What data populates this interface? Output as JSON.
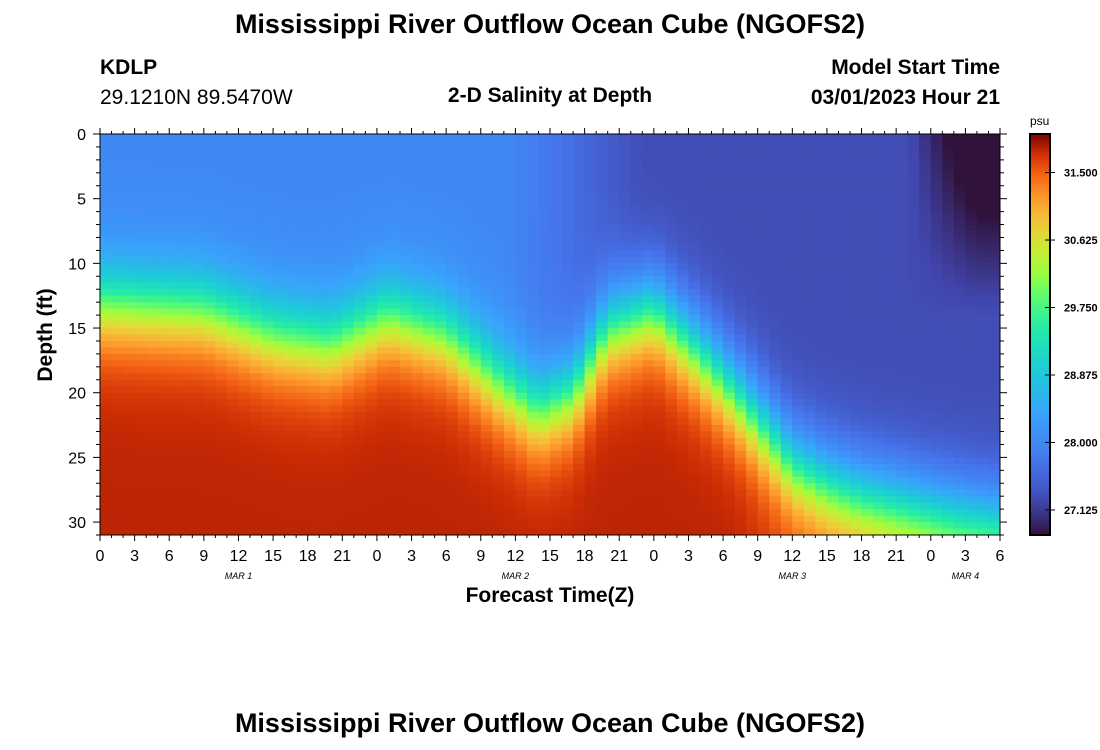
{
  "header": {
    "title": "Mississippi River Outflow Ocean Cube (NGOFS2)",
    "station": "KDLP",
    "coords": "29.1210N  89.5470W",
    "subtitle": "2-D Salinity at Depth",
    "model_start_label": "Model Start Time",
    "model_start_value": "03/01/2023 Hour 21"
  },
  "footer": {
    "title": "Mississippi River Outflow Ocean Cube (NGOFS2)"
  },
  "chart_data": {
    "type": "heatmap",
    "title": "2-D Salinity at Depth",
    "xlabel": "Forecast Time(Z)",
    "ylabel": "Depth (ft)",
    "x_ticks": [
      "0",
      "3",
      "6",
      "9",
      "12",
      "15",
      "18",
      "21",
      "0",
      "3",
      "6",
      "9",
      "12",
      "15",
      "18",
      "21",
      "0",
      "3",
      "6",
      "9",
      "12",
      "15",
      "18",
      "21",
      "0",
      "3",
      "6"
    ],
    "x_hours_range": [
      0,
      78
    ],
    "day_labels": [
      {
        "hour": 12,
        "label": "MAR 1"
      },
      {
        "hour": 36,
        "label": "MAR 2"
      },
      {
        "hour": 60,
        "label": "MAR 3"
      },
      {
        "hour": 75,
        "label": "MAR 4"
      }
    ],
    "y_ticks": [
      0,
      5,
      10,
      15,
      20,
      25,
      30
    ],
    "ylim": [
      0,
      31
    ],
    "y_inverted": true,
    "colorbar": {
      "unit": "psu",
      "range": [
        26.8,
        32.0
      ],
      "ticks": [
        "31.500",
        "30.625",
        "29.750",
        "28.875",
        "28.000",
        "27.125"
      ]
    },
    "top_layer_salinity": 28.0,
    "bottom_layer_salinity": 31.8,
    "halocline_depth_ft": [
      {
        "hour": 0,
        "depth": 13.0
      },
      {
        "hour": 9,
        "depth": 13.5
      },
      {
        "hour": 15,
        "depth": 15.5
      },
      {
        "hour": 20,
        "depth": 16.2
      },
      {
        "hour": 25,
        "depth": 14.0
      },
      {
        "hour": 30,
        "depth": 15.5
      },
      {
        "hour": 35,
        "depth": 19.5
      },
      {
        "hour": 38,
        "depth": 21.5
      },
      {
        "hour": 41,
        "depth": 20.0
      },
      {
        "hour": 44,
        "depth": 15.0
      },
      {
        "hour": 48,
        "depth": 13.5
      },
      {
        "hour": 52,
        "depth": 17.0
      },
      {
        "hour": 56,
        "depth": 21.0
      },
      {
        "hour": 60,
        "depth": 25.5
      },
      {
        "hour": 63,
        "depth": 27.0
      },
      {
        "hour": 66,
        "depth": 28.0
      },
      {
        "hour": 70,
        "depth": 28.8
      },
      {
        "hour": 74,
        "depth": 29.6
      },
      {
        "hour": 78,
        "depth": 30.2
      }
    ]
  }
}
